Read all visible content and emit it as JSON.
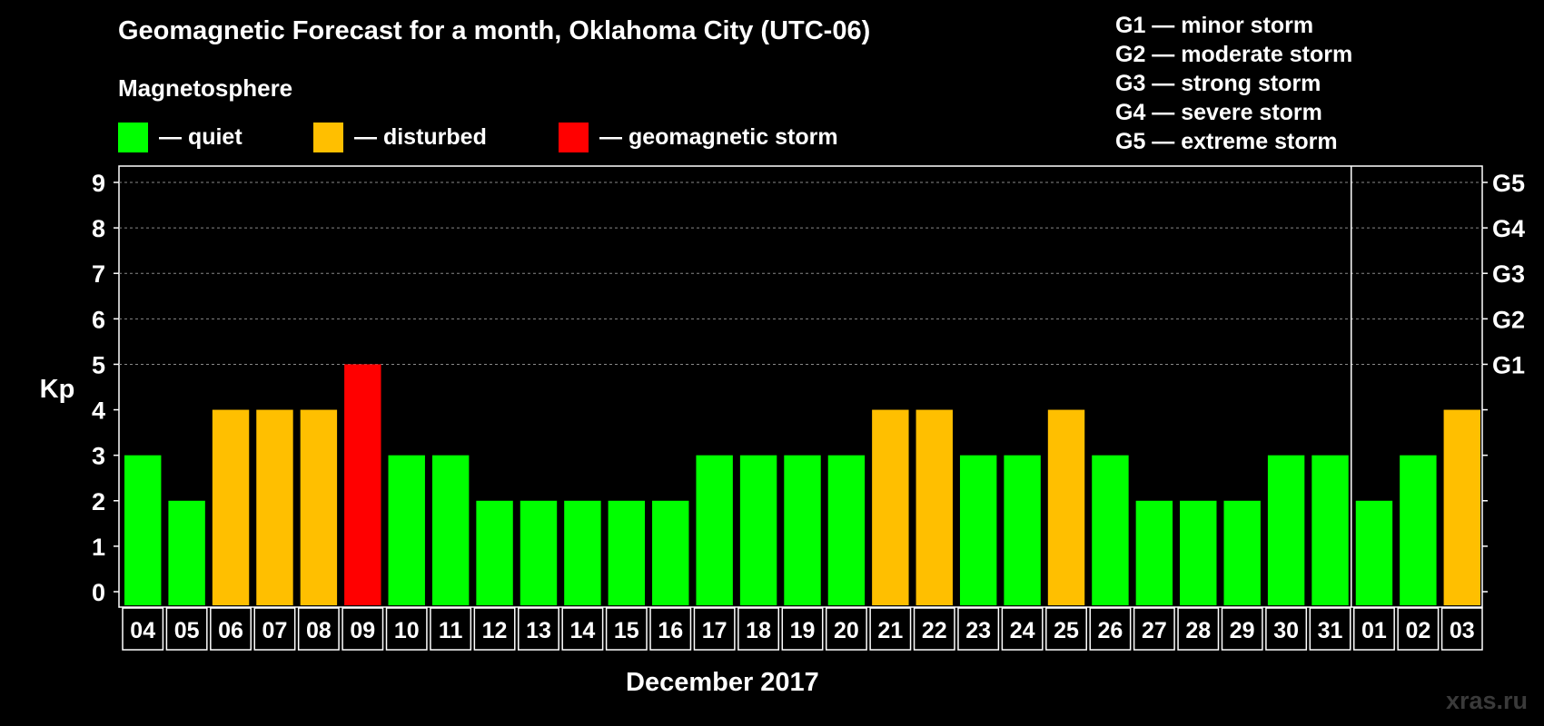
{
  "chart_data": {
    "type": "bar",
    "title": "Geomagnetic Forecast for a month, Oklahoma City (UTC-06)",
    "subtitle": "Magnetosphere",
    "xlabel": "December 2017",
    "ylabel": "Kp",
    "ylim": [
      0,
      9
    ],
    "yticks": [
      "0",
      "1",
      "2",
      "3",
      "4",
      "5",
      "6",
      "7",
      "8",
      "9"
    ],
    "right_axis_labels": [
      {
        "kp": 5,
        "label": "G1"
      },
      {
        "kp": 6,
        "label": "G2"
      },
      {
        "kp": 7,
        "label": "G3"
      },
      {
        "kp": 8,
        "label": "G4"
      },
      {
        "kp": 9,
        "label": "G5"
      }
    ],
    "categories": [
      "04",
      "05",
      "06",
      "07",
      "08",
      "09",
      "10",
      "11",
      "12",
      "13",
      "14",
      "15",
      "16",
      "17",
      "18",
      "19",
      "20",
      "21",
      "22",
      "23",
      "24",
      "25",
      "26",
      "27",
      "28",
      "29",
      "30",
      "31",
      "01",
      "02",
      "03"
    ],
    "values": [
      3,
      2,
      4,
      4,
      4,
      5,
      3,
      3,
      2,
      2,
      2,
      2,
      2,
      3,
      3,
      3,
      3,
      4,
      4,
      3,
      3,
      4,
      3,
      2,
      2,
      2,
      3,
      3,
      2,
      3,
      4
    ],
    "month_divider_after": "31",
    "color_rule": "quiet <= 3, disturbed = 4, geomagnetic storm >= 5"
  },
  "legend": [
    {
      "label": "— quiet",
      "color": "#00ff00"
    },
    {
      "label": "— disturbed",
      "color": "#ffbf00"
    },
    {
      "label": "— geomagnetic storm",
      "color": "#ff0000"
    }
  ],
  "gscale": [
    "G1 — minor storm",
    "G2 — moderate storm",
    "G3 — strong storm",
    "G4 — severe storm",
    "G5 — extreme storm"
  ],
  "watermark": "xras.ru"
}
